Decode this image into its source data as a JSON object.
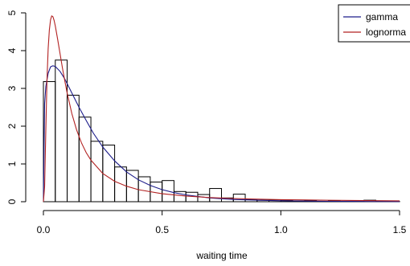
{
  "chart_data": {
    "type": "histogram",
    "xlabel": "waiting time",
    "ylabel": "",
    "title": "",
    "xlim": [
      0,
      1.5
    ],
    "ylim": [
      0,
      5
    ],
    "x_ticks": [
      "0.0",
      "0.5",
      "1.0",
      "1.5"
    ],
    "x_tick_values": [
      0,
      0.5,
      1.0,
      1.5
    ],
    "y_ticks": [
      "0",
      "1",
      "2",
      "3",
      "4",
      "5"
    ],
    "y_tick_values": [
      0,
      1,
      2,
      3,
      4,
      5
    ],
    "bin_width": 0.05,
    "bins": [
      {
        "x0": 0.0,
        "x1": 0.05,
        "density": 3.18
      },
      {
        "x0": 0.05,
        "x1": 0.1,
        "density": 3.75
      },
      {
        "x0": 0.1,
        "x1": 0.15,
        "density": 2.82
      },
      {
        "x0": 0.15,
        "x1": 0.2,
        "density": 2.24
      },
      {
        "x0": 0.2,
        "x1": 0.25,
        "density": 1.6
      },
      {
        "x0": 0.25,
        "x1": 0.3,
        "density": 1.5
      },
      {
        "x0": 0.3,
        "x1": 0.35,
        "density": 0.92
      },
      {
        "x0": 0.35,
        "x1": 0.4,
        "density": 0.83
      },
      {
        "x0": 0.4,
        "x1": 0.45,
        "density": 0.66
      },
      {
        "x0": 0.45,
        "x1": 0.5,
        "density": 0.52
      },
      {
        "x0": 0.5,
        "x1": 0.55,
        "density": 0.56
      },
      {
        "x0": 0.55,
        "x1": 0.6,
        "density": 0.27
      },
      {
        "x0": 0.6,
        "x1": 0.65,
        "density": 0.25
      },
      {
        "x0": 0.65,
        "x1": 0.7,
        "density": 0.19
      },
      {
        "x0": 0.7,
        "x1": 0.75,
        "density": 0.35
      },
      {
        "x0": 0.75,
        "x1": 0.8,
        "density": 0.1
      },
      {
        "x0": 0.8,
        "x1": 0.85,
        "density": 0.2
      },
      {
        "x0": 0.85,
        "x1": 0.9,
        "density": 0.06
      },
      {
        "x0": 0.9,
        "x1": 0.95,
        "density": 0.04
      },
      {
        "x0": 0.95,
        "x1": 1.0,
        "density": 0.05
      },
      {
        "x0": 1.0,
        "x1": 1.05,
        "density": 0.03
      },
      {
        "x0": 1.05,
        "x1": 1.1,
        "density": 0.02
      },
      {
        "x0": 1.1,
        "x1": 1.15,
        "density": 0.03
      },
      {
        "x0": 1.15,
        "x1": 1.2,
        "density": 0.01
      },
      {
        "x0": 1.2,
        "x1": 1.25,
        "density": 0.03
      },
      {
        "x0": 1.25,
        "x1": 1.3,
        "density": 0.01
      },
      {
        "x0": 1.3,
        "x1": 1.35,
        "density": 0.01
      },
      {
        "x0": 1.35,
        "x1": 1.4,
        "density": 0.04
      },
      {
        "x0": 1.4,
        "x1": 1.45,
        "density": 0.01
      },
      {
        "x0": 1.45,
        "x1": 1.5,
        "density": 0.01
      }
    ],
    "series": [
      {
        "name": "gamma",
        "color": "#1c1c8a",
        "x": [
          0.0,
          0.005,
          0.01,
          0.02,
          0.03,
          0.04,
          0.05,
          0.07,
          0.09,
          0.11,
          0.13,
          0.15,
          0.18,
          0.21,
          0.25,
          0.3,
          0.35,
          0.4,
          0.45,
          0.5,
          0.55,
          0.6,
          0.7,
          0.8,
          0.9,
          1.0,
          1.1,
          1.2,
          1.3,
          1.4,
          1.5
        ],
        "y": [
          0.0,
          2.6,
          3.05,
          3.4,
          3.57,
          3.6,
          3.58,
          3.45,
          3.25,
          3.0,
          2.75,
          2.5,
          2.15,
          1.82,
          1.45,
          1.08,
          0.79,
          0.58,
          0.43,
          0.32,
          0.24,
          0.18,
          0.1,
          0.06,
          0.04,
          0.025,
          0.016,
          0.011,
          0.008,
          0.006,
          0.004
        ]
      },
      {
        "name": "lognormal",
        "color": "#b22222",
        "x": [
          0.0,
          0.005,
          0.01,
          0.015,
          0.02,
          0.025,
          0.03,
          0.035,
          0.04,
          0.045,
          0.05,
          0.06,
          0.07,
          0.08,
          0.09,
          0.1,
          0.12,
          0.14,
          0.16,
          0.18,
          0.2,
          0.25,
          0.3,
          0.35,
          0.4,
          0.5,
          0.6,
          0.7,
          0.8,
          0.9,
          1.0,
          1.2,
          1.4,
          1.5
        ],
        "y": [
          0.0,
          0.4,
          1.9,
          3.2,
          4.05,
          4.55,
          4.82,
          4.92,
          4.9,
          4.8,
          4.65,
          4.3,
          3.92,
          3.55,
          3.2,
          2.88,
          2.33,
          1.9,
          1.56,
          1.3,
          1.1,
          0.75,
          0.54,
          0.41,
          0.32,
          0.21,
          0.15,
          0.11,
          0.085,
          0.068,
          0.055,
          0.038,
          0.028,
          0.024
        ]
      }
    ],
    "legend": {
      "position": "top-right",
      "entries": [
        {
          "label": "gamma",
          "color": "#1c1c8a"
        },
        {
          "label": "lognorma",
          "color": "#b22222"
        }
      ]
    }
  }
}
